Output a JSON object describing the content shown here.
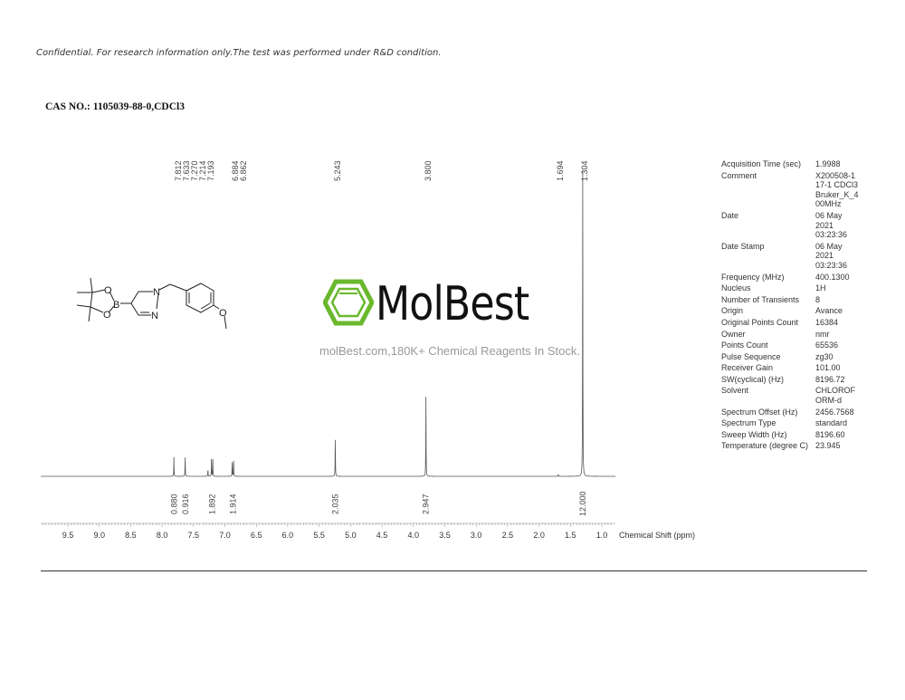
{
  "disclaimer": "Confidential. For research information only.The test was performed under R&D condition.",
  "cas_line": "CAS NO.: 1105039-88-0,CDCl3",
  "watermark": {
    "brand": "MolBest",
    "tagline": "molBest.com,180K+ Chemical Reagents In Stock.",
    "color": "#6ab82c"
  },
  "parameters": [
    {
      "key": "Acquisition Time (sec)",
      "value": "1.9988"
    },
    {
      "key": "Comment",
      "value": "X200508-1\n17-1 CDCl3\nBruker_K_4\n00MHz"
    },
    {
      "key": "Date",
      "value": "06 May\n2021\n03:23:36"
    },
    {
      "key": "Date Stamp",
      "value": "06 May\n2021\n03:23:36"
    },
    {
      "key": "Frequency (MHz)",
      "value": "400.1300"
    },
    {
      "key": "Nucleus",
      "value": "1H"
    },
    {
      "key": "Number of Transients",
      "value": "8"
    },
    {
      "key": "Origin",
      "value": "Avance"
    },
    {
      "key": "Original Points Count",
      "value": "16384"
    },
    {
      "key": "Owner",
      "value": "nmr"
    },
    {
      "key": "Points Count",
      "value": "65536"
    },
    {
      "key": "Pulse Sequence",
      "value": "zg30"
    },
    {
      "key": "Receiver Gain",
      "value": "101.00"
    },
    {
      "key": "SW(cyclical) (Hz)",
      "value": "8196.72"
    },
    {
      "key": "Solvent",
      "value": "CHLOROF\nORM-d"
    },
    {
      "key": "Spectrum Offset (Hz)",
      "value": "2456.7568"
    },
    {
      "key": "Spectrum Type",
      "value": "standard"
    },
    {
      "key": "Sweep Width (Hz)",
      "value": "8196.60"
    },
    {
      "key": "Temperature (degree C)",
      "value": "23.945"
    }
  ],
  "chart_data": {
    "type": "line",
    "xlabel": "Chemical Shift (ppm)",
    "xlim": [
      9.93,
      0.78
    ],
    "x_reversed": true,
    "x_ticks": [
      "9.5",
      "9.0",
      "8.5",
      "8.0",
      "7.5",
      "7.0",
      "6.5",
      "6.0",
      "5.5",
      "5.0",
      "4.5",
      "4.0",
      "3.5",
      "3.0",
      "2.5",
      "2.0",
      "1.5",
      "1.0"
    ],
    "peaks": [
      {
        "ppm": 7.812,
        "label": "7.812",
        "intensity": 6.3
      },
      {
        "ppm": 7.633,
        "label": "7.633",
        "intensity": 7.0
      },
      {
        "ppm": 7.27,
        "label": "7.270",
        "intensity": 2.6
      },
      {
        "ppm": 7.214,
        "label": "7.214",
        "intensity": 5.6
      },
      {
        "ppm": 7.193,
        "label": "7.193",
        "intensity": 5.6
      },
      {
        "ppm": 6.884,
        "label": "6.884",
        "intensity": 5.4
      },
      {
        "ppm": 6.862,
        "label": "6.862",
        "intensity": 5.4
      },
      {
        "ppm": 5.243,
        "label": "5.243",
        "intensity": 14
      },
      {
        "ppm": 3.8,
        "label": "3.800",
        "intensity": 26
      },
      {
        "ppm": 1.694,
        "label": "1.694",
        "intensity": 0.8
      },
      {
        "ppm": 1.304,
        "label": "1.304",
        "intensity": 100
      }
    ],
    "integrals": [
      {
        "ppm": 7.81,
        "value": "0.880"
      },
      {
        "ppm": 7.63,
        "value": "0.916"
      },
      {
        "ppm": 7.2,
        "value": "1.892"
      },
      {
        "ppm": 6.87,
        "value": "1.914"
      },
      {
        "ppm": 5.24,
        "value": "2.035"
      },
      {
        "ppm": 3.8,
        "value": "2.947"
      },
      {
        "ppm": 1.3,
        "value": "12.000"
      }
    ],
    "structure_atoms": [
      "O",
      "O",
      "B",
      "N",
      "N",
      "O"
    ]
  }
}
